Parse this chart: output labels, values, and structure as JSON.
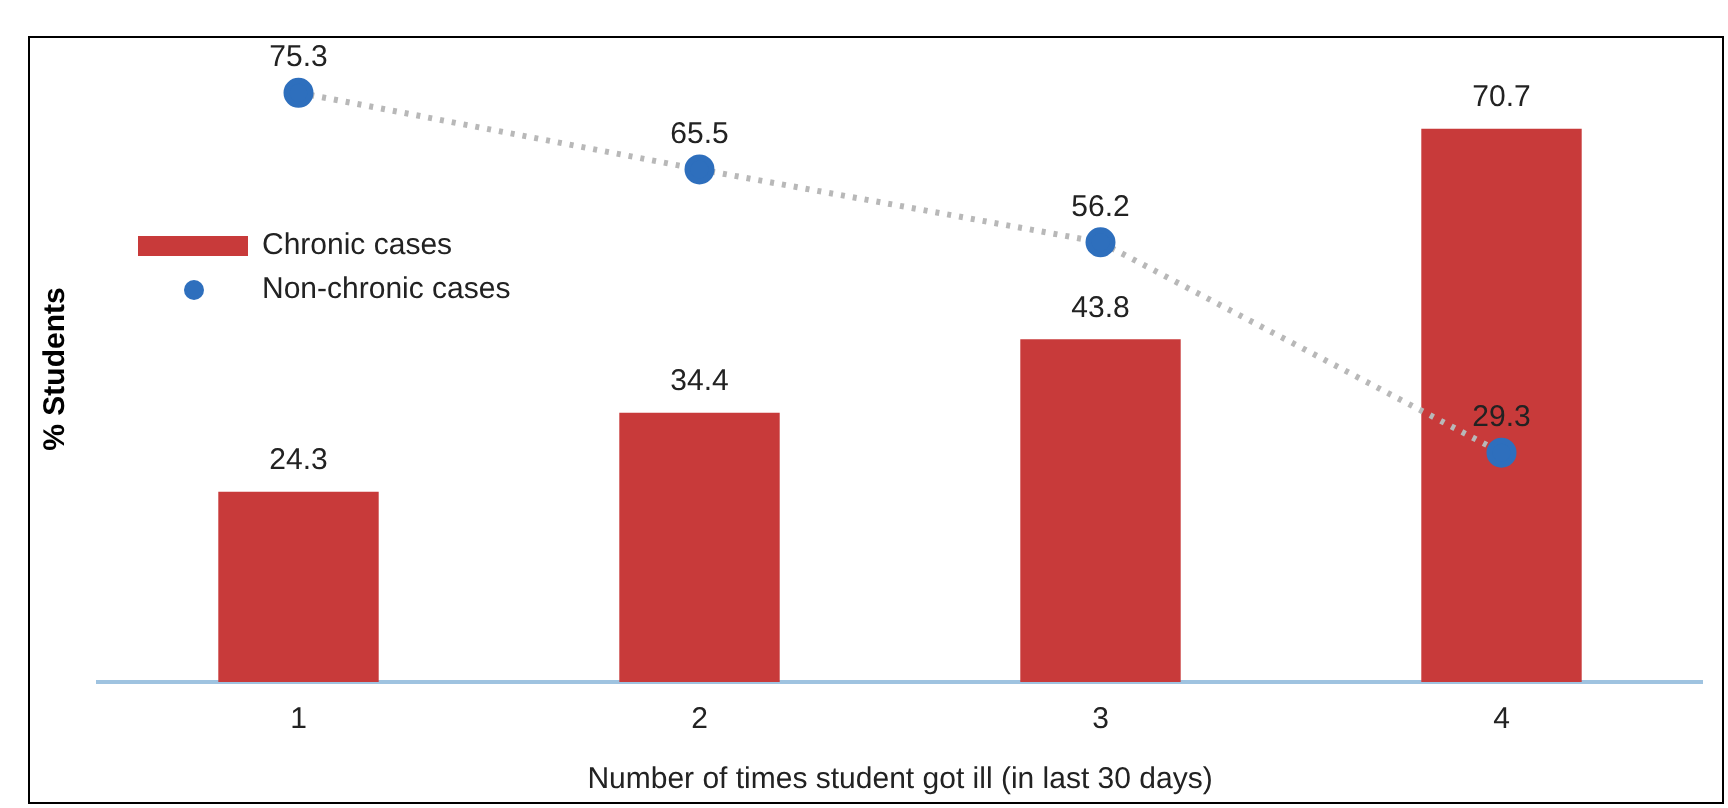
{
  "chart_data": {
    "type": "bar",
    "xlabel": "Number of times student got ill (in last 30 days)",
    "ylabel": "% Students",
    "categories": [
      "1",
      "2",
      "3",
      "4"
    ],
    "series": [
      {
        "name": "Chronic cases",
        "color": "#c83a3a",
        "values": [
          24.3,
          34.4,
          43.8,
          70.7
        ]
      },
      {
        "name": "Non-chronic cases",
        "type": "line",
        "color": "#2e6fbd",
        "values": [
          75.3,
          65.5,
          56.2,
          29.3
        ],
        "line_style": "dotted",
        "marker": "circle"
      }
    ],
    "tick_labels": "x",
    "grid": false,
    "legend": "left",
    "data_labels": true
  }
}
